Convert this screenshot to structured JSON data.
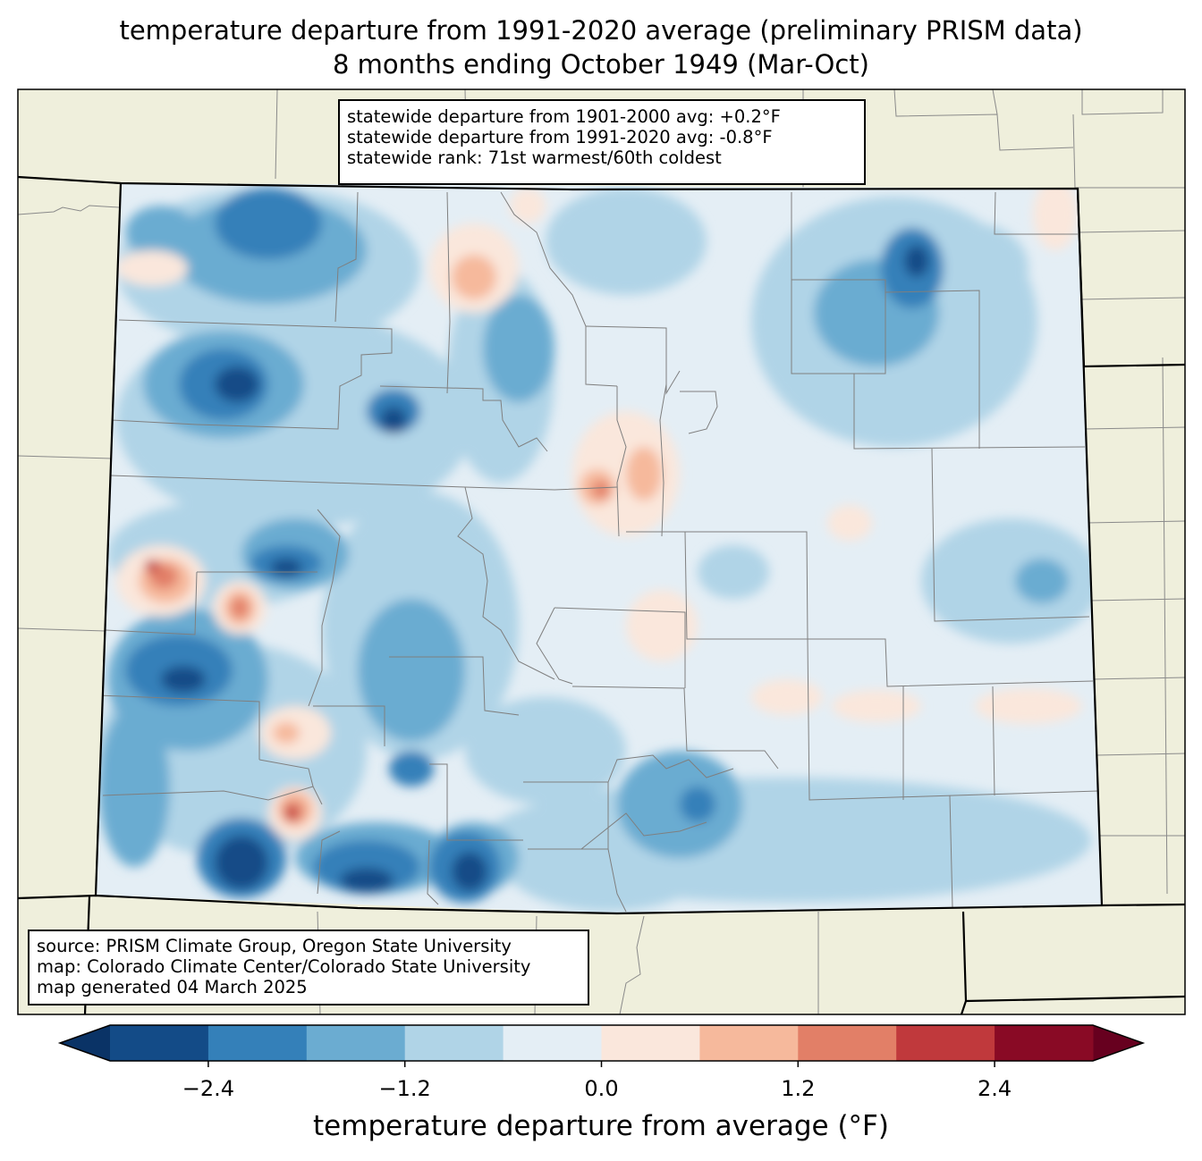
{
  "title": {
    "line1": "temperature departure from 1991-2020 average (preliminary PRISM data)",
    "line2": "8 months ending October 1949 (Mar-Oct)"
  },
  "stats_box": {
    "line1": "statewide departure from 1901-2000 avg: +0.2°F",
    "line2": "statewide departure from 1991-2020 avg: -0.8°F",
    "line3": "statewide rank: 71st warmest/60th coldest"
  },
  "source_box": {
    "line1": "source: PRISM Climate Group, Oregon State University",
    "line2": "map: Colorado Climate Center/Colorado State University",
    "line3": "map generated 04 March 2025"
  },
  "colorbar": {
    "label": "temperature departure from average (°F)",
    "ticks": [
      {
        "value": -2.4,
        "label": "−2.4"
      },
      {
        "value": -1.2,
        "label": "−1.2"
      },
      {
        "value": 0.0,
        "label": "0.0"
      },
      {
        "value": 1.2,
        "label": "1.2"
      },
      {
        "value": 2.4,
        "label": "2.4"
      }
    ],
    "range": [
      -3.0,
      3.0
    ],
    "bins": [
      {
        "from": -3.0,
        "to": -2.4,
        "color": "#134b87"
      },
      {
        "from": -2.4,
        "to": -1.8,
        "color": "#3480b9"
      },
      {
        "from": -1.8,
        "to": -1.2,
        "color": "#6bacd1"
      },
      {
        "from": -1.2,
        "to": -0.6,
        "color": "#b0d4e7"
      },
      {
        "from": -0.6,
        "to": 0.0,
        "color": "#e4eef5"
      },
      {
        "from": 0.0,
        "to": 0.6,
        "color": "#fae7dc"
      },
      {
        "from": 0.6,
        "to": 1.2,
        "color": "#f6b99c"
      },
      {
        "from": 1.2,
        "to": 1.8,
        "color": "#e27f67"
      },
      {
        "from": 1.8,
        "to": 2.4,
        "color": "#c0393c"
      },
      {
        "from": 2.4,
        "to": 3.0,
        "color": "#890a25"
      }
    ],
    "under_color": "#0a3366",
    "over_color": "#67001f"
  },
  "colors": {
    "land": "#efefdc",
    "background": "#e4eef5"
  }
}
